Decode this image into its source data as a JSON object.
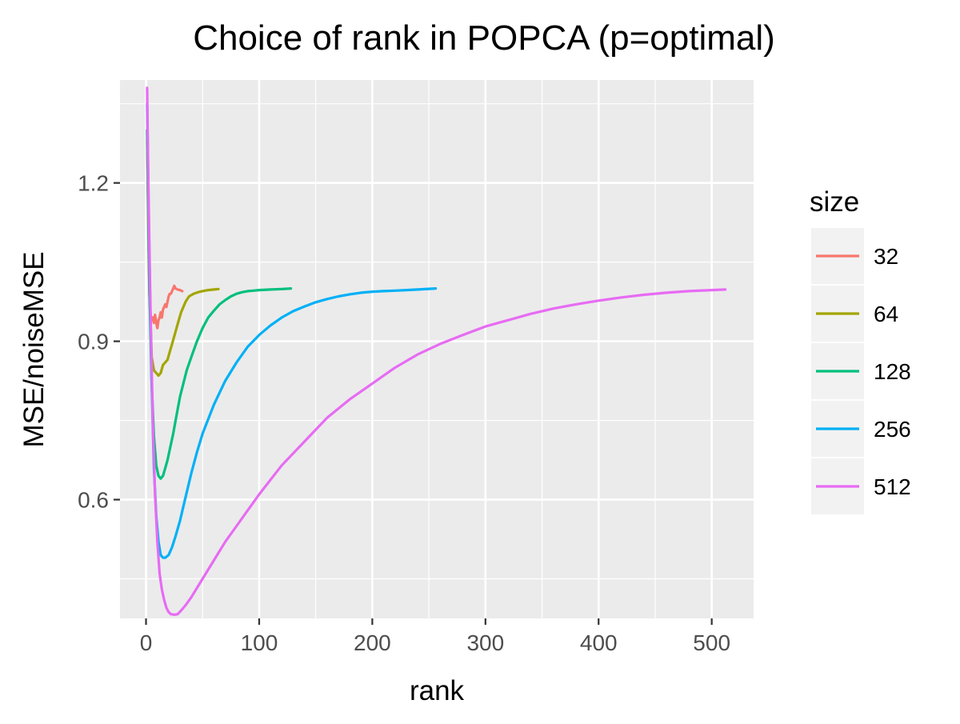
{
  "chart_data": {
    "type": "line",
    "title": "Choice of rank in POPCA (p=optimal)",
    "xlabel": "rank",
    "ylabel": "MSE/noiseMSE",
    "xlim": [
      -23,
      537
    ],
    "ylim": [
      0.375,
      1.395
    ],
    "x_ticks": [
      0,
      100,
      200,
      300,
      400,
      500
    ],
    "x_minor_ticks": [
      50,
      150,
      250,
      350,
      450
    ],
    "y_ticks": [
      0.6,
      0.9,
      1.2
    ],
    "y_minor_ticks": [
      0.45,
      0.75,
      1.05,
      1.35
    ],
    "grid": true,
    "legend": {
      "title": "size",
      "position": "right",
      "entries": [
        "32",
        "64",
        "128",
        "256",
        "512"
      ]
    },
    "series": [
      {
        "name": "32",
        "color": "#F8766D",
        "points": [
          [
            1,
            1.3
          ],
          [
            2,
            1.1
          ],
          [
            3,
            0.99
          ],
          [
            4,
            0.95
          ],
          [
            5,
            0.94
          ],
          [
            6,
            0.945
          ],
          [
            7,
            0.935
          ],
          [
            8,
            0.95
          ],
          [
            9,
            0.935
          ],
          [
            10,
            0.925
          ],
          [
            11,
            0.94
          ],
          [
            12,
            0.945
          ],
          [
            13,
            0.955
          ],
          [
            14,
            0.945
          ],
          [
            15,
            0.96
          ],
          [
            16,
            0.965
          ],
          [
            17,
            0.97
          ],
          [
            18,
            0.965
          ],
          [
            19,
            0.975
          ],
          [
            20,
            0.985
          ],
          [
            21,
            0.99
          ],
          [
            22,
            0.99
          ],
          [
            23,
            0.995
          ],
          [
            24,
            1.0
          ],
          [
            25,
            1.005
          ],
          [
            26,
            1.0
          ],
          [
            28,
            0.998
          ],
          [
            30,
            0.997
          ],
          [
            32,
            0.995
          ]
        ]
      },
      {
        "name": "64",
        "color": "#A3A500",
        "points": [
          [
            1,
            1.28
          ],
          [
            3,
            1.0
          ],
          [
            5,
            0.87
          ],
          [
            7,
            0.845
          ],
          [
            9,
            0.84
          ],
          [
            11,
            0.835
          ],
          [
            13,
            0.84
          ],
          [
            15,
            0.855
          ],
          [
            17,
            0.86
          ],
          [
            19,
            0.865
          ],
          [
            21,
            0.88
          ],
          [
            23,
            0.895
          ],
          [
            25,
            0.91
          ],
          [
            27,
            0.925
          ],
          [
            29,
            0.94
          ],
          [
            31,
            0.955
          ],
          [
            33,
            0.965
          ],
          [
            35,
            0.975
          ],
          [
            38,
            0.985
          ],
          [
            42,
            0.99
          ],
          [
            46,
            0.993
          ],
          [
            50,
            0.995
          ],
          [
            55,
            0.997
          ],
          [
            60,
            0.998
          ],
          [
            64,
            0.999
          ]
        ]
      },
      {
        "name": "128",
        "color": "#00BF7D",
        "points": [
          [
            1,
            1.3
          ],
          [
            3,
            1.0
          ],
          [
            5,
            0.82
          ],
          [
            7,
            0.72
          ],
          [
            9,
            0.665
          ],
          [
            11,
            0.645
          ],
          [
            13,
            0.64
          ],
          [
            15,
            0.645
          ],
          [
            17,
            0.66
          ],
          [
            19,
            0.675
          ],
          [
            21,
            0.695
          ],
          [
            24,
            0.725
          ],
          [
            27,
            0.76
          ],
          [
            30,
            0.795
          ],
          [
            33,
            0.82
          ],
          [
            36,
            0.845
          ],
          [
            40,
            0.87
          ],
          [
            45,
            0.9
          ],
          [
            50,
            0.925
          ],
          [
            55,
            0.945
          ],
          [
            60,
            0.958
          ],
          [
            65,
            0.97
          ],
          [
            70,
            0.978
          ],
          [
            75,
            0.985
          ],
          [
            80,
            0.99
          ],
          [
            85,
            0.993
          ],
          [
            90,
            0.995
          ],
          [
            95,
            0.996
          ],
          [
            100,
            0.997
          ],
          [
            110,
            0.998
          ],
          [
            120,
            0.999
          ],
          [
            128,
            1.0
          ]
        ]
      },
      {
        "name": "256",
        "color": "#00B0F6",
        "points": [
          [
            1,
            1.35
          ],
          [
            3,
            1.05
          ],
          [
            5,
            0.82
          ],
          [
            7,
            0.66
          ],
          [
            9,
            0.57
          ],
          [
            11,
            0.52
          ],
          [
            13,
            0.495
          ],
          [
            15,
            0.49
          ],
          [
            17,
            0.49
          ],
          [
            20,
            0.495
          ],
          [
            23,
            0.51
          ],
          [
            26,
            0.53
          ],
          [
            30,
            0.56
          ],
          [
            35,
            0.605
          ],
          [
            40,
            0.65
          ],
          [
            45,
            0.69
          ],
          [
            50,
            0.725
          ],
          [
            60,
            0.78
          ],
          [
            70,
            0.825
          ],
          [
            80,
            0.86
          ],
          [
            90,
            0.89
          ],
          [
            100,
            0.912
          ],
          [
            110,
            0.93
          ],
          [
            120,
            0.945
          ],
          [
            130,
            0.957
          ],
          [
            140,
            0.966
          ],
          [
            150,
            0.974
          ],
          [
            160,
            0.98
          ],
          [
            170,
            0.985
          ],
          [
            180,
            0.989
          ],
          [
            190,
            0.992
          ],
          [
            200,
            0.994
          ],
          [
            210,
            0.995
          ],
          [
            220,
            0.996
          ],
          [
            230,
            0.997
          ],
          [
            240,
            0.998
          ],
          [
            256,
            1.0
          ]
        ]
      },
      {
        "name": "512",
        "color": "#E76BF3",
        "points": [
          [
            1,
            1.38
          ],
          [
            2,
            1.2
          ],
          [
            4,
            0.95
          ],
          [
            6,
            0.75
          ],
          [
            8,
            0.61
          ],
          [
            10,
            0.52
          ],
          [
            12,
            0.46
          ],
          [
            14,
            0.43
          ],
          [
            16,
            0.41
          ],
          [
            18,
            0.395
          ],
          [
            20,
            0.387
          ],
          [
            22,
            0.383
          ],
          [
            25,
            0.382
          ],
          [
            28,
            0.383
          ],
          [
            31,
            0.39
          ],
          [
            35,
            0.4
          ],
          [
            40,
            0.415
          ],
          [
            50,
            0.45
          ],
          [
            60,
            0.485
          ],
          [
            70,
            0.52
          ],
          [
            80,
            0.55
          ],
          [
            90,
            0.58
          ],
          [
            100,
            0.61
          ],
          [
            120,
            0.665
          ],
          [
            140,
            0.71
          ],
          [
            160,
            0.755
          ],
          [
            180,
            0.79
          ],
          [
            200,
            0.82
          ],
          [
            220,
            0.85
          ],
          [
            240,
            0.875
          ],
          [
            260,
            0.895
          ],
          [
            280,
            0.912
          ],
          [
            300,
            0.928
          ],
          [
            320,
            0.94
          ],
          [
            340,
            0.952
          ],
          [
            360,
            0.962
          ],
          [
            380,
            0.97
          ],
          [
            400,
            0.977
          ],
          [
            420,
            0.983
          ],
          [
            440,
            0.988
          ],
          [
            460,
            0.992
          ],
          [
            480,
            0.995
          ],
          [
            500,
            0.997
          ],
          [
            512,
            0.998
          ]
        ]
      }
    ]
  }
}
